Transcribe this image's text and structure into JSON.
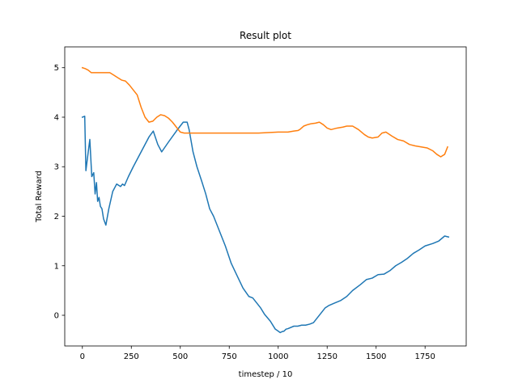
{
  "chart_data": {
    "type": "line",
    "title": "Result plot",
    "xlabel": "timestep / 10",
    "ylabel": "Total Reward",
    "xlim": [
      -90,
      1960
    ],
    "ylim": [
      -0.62,
      5.42
    ],
    "xticks": [
      0,
      250,
      500,
      750,
      1000,
      1250,
      1500,
      1750
    ],
    "yticks": [
      0,
      1,
      2,
      3,
      4,
      5
    ],
    "grid": false,
    "legend": "none",
    "series": [
      {
        "color": "#1f77b4",
        "x": [
          0,
          12,
          18,
          30,
          38,
          48,
          58,
          65,
          72,
          78,
          85,
          92,
          100,
          108,
          120,
          135,
          155,
          175,
          195,
          205,
          215,
          235,
          260,
          300,
          340,
          362,
          385,
          405,
          440,
          480,
          515,
          535,
          545,
          565,
          585,
          610,
          630,
          650,
          670,
          690,
          710,
          730,
          760,
          790,
          820,
          850,
          870,
          890,
          910,
          930,
          960,
          985,
          1000,
          1010,
          1020,
          1030,
          1040,
          1050,
          1080,
          1100,
          1120,
          1140,
          1160,
          1180,
          1200,
          1220,
          1240,
          1260,
          1290,
          1320,
          1350,
          1380,
          1420,
          1450,
          1480,
          1510,
          1540,
          1570,
          1600,
          1630,
          1660,
          1690,
          1720,
          1750,
          1790,
          1820,
          1850,
          1870
        ],
        "y": [
          4.0,
          4.02,
          2.92,
          3.3,
          3.55,
          2.8,
          2.88,
          2.45,
          2.68,
          2.3,
          2.38,
          2.2,
          2.15,
          1.95,
          1.82,
          2.15,
          2.5,
          2.65,
          2.6,
          2.65,
          2.62,
          2.8,
          3.0,
          3.3,
          3.6,
          3.72,
          3.45,
          3.3,
          3.5,
          3.72,
          3.9,
          3.9,
          3.75,
          3.3,
          3.0,
          2.7,
          2.45,
          2.15,
          2.0,
          1.8,
          1.6,
          1.4,
          1.05,
          0.8,
          0.55,
          0.38,
          0.35,
          0.25,
          0.15,
          0.02,
          -0.12,
          -0.28,
          -0.32,
          -0.35,
          -0.33,
          -0.32,
          -0.28,
          -0.27,
          -0.22,
          -0.22,
          -0.2,
          -0.2,
          -0.18,
          -0.15,
          -0.05,
          0.05,
          0.15,
          0.2,
          0.25,
          0.3,
          0.38,
          0.5,
          0.62,
          0.72,
          0.75,
          0.82,
          0.83,
          0.9,
          1.0,
          1.07,
          1.15,
          1.25,
          1.32,
          1.4,
          1.45,
          1.5,
          1.6,
          1.58
        ]
      },
      {
        "color": "#ff7f0e",
        "x": [
          0,
          15,
          30,
          45,
          60,
          80,
          100,
          120,
          140,
          160,
          180,
          200,
          220,
          240,
          260,
          280,
          300,
          320,
          340,
          360,
          380,
          400,
          420,
          440,
          460,
          480,
          500,
          520,
          540,
          560,
          600,
          700,
          800,
          900,
          1000,
          1050,
          1080,
          1100,
          1110,
          1130,
          1150,
          1170,
          1190,
          1210,
          1230,
          1250,
          1270,
          1300,
          1330,
          1350,
          1380,
          1410,
          1440,
          1460,
          1480,
          1510,
          1530,
          1550,
          1580,
          1610,
          1640,
          1670,
          1700,
          1730,
          1760,
          1790,
          1810,
          1830,
          1850,
          1865
        ],
        "y": [
          5.0,
          4.98,
          4.95,
          4.9,
          4.9,
          4.9,
          4.9,
          4.9,
          4.9,
          4.85,
          4.8,
          4.75,
          4.73,
          4.65,
          4.55,
          4.45,
          4.2,
          4.0,
          3.9,
          3.92,
          4.0,
          4.05,
          4.03,
          3.98,
          3.9,
          3.8,
          3.7,
          3.68,
          3.68,
          3.68,
          3.68,
          3.68,
          3.68,
          3.68,
          3.7,
          3.7,
          3.72,
          3.73,
          3.75,
          3.82,
          3.85,
          3.87,
          3.88,
          3.9,
          3.85,
          3.78,
          3.75,
          3.78,
          3.8,
          3.82,
          3.82,
          3.75,
          3.65,
          3.6,
          3.58,
          3.6,
          3.68,
          3.7,
          3.62,
          3.55,
          3.52,
          3.45,
          3.42,
          3.4,
          3.38,
          3.32,
          3.25,
          3.2,
          3.25,
          3.4
        ]
      }
    ]
  }
}
